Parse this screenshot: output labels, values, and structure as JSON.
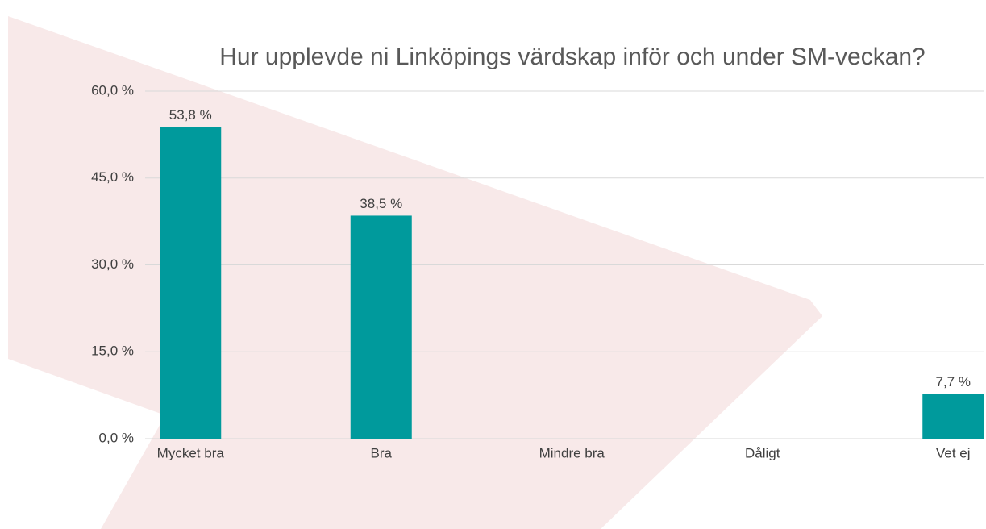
{
  "chart_data": {
    "type": "bar",
    "title": "Hur upplevde ni Linköpings värdskap inför och under SM-veckan?",
    "categories": [
      "Mycket bra",
      "Bra",
      "Mindre bra",
      "Dåligt",
      "Vet ej"
    ],
    "values": [
      53.8,
      38.5,
      0,
      0,
      7.7
    ],
    "value_labels": [
      "53,8 %",
      "38,5 %",
      null,
      null,
      "7,7 %"
    ],
    "color": "#009a9c",
    "ylim": [
      0,
      60
    ],
    "yticks": [
      {
        "value": 0,
        "label": "0,0 %"
      },
      {
        "value": 15,
        "label": "15,0 %"
      },
      {
        "value": 30,
        "label": "30,0 %"
      },
      {
        "value": 45,
        "label": "45,0 %"
      },
      {
        "value": 60,
        "label": "60,0 %"
      }
    ],
    "grid": true
  }
}
